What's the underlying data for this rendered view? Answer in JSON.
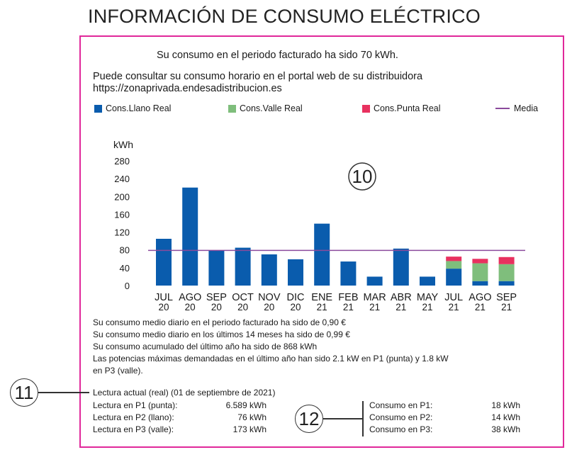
{
  "title": "INFORMACIÓN DE CONSUMO ELÉCTRICO",
  "period_text": "Su consumo en el periodo facturado ha sido 70 kWh.",
  "consulta_line1": "Puede consultar su consumo horario en el portal web de su distribuidora",
  "consulta_line2": "https://zonaprivada.endesadistribucion.es",
  "legend": [
    {
      "label": "Cons.Llano Real",
      "color": "#0a5cad"
    },
    {
      "label": "Cons.Valle Real",
      "color": "#7fbe7c"
    },
    {
      "label": "Cons.Punta Real",
      "color": "#e8315f"
    },
    {
      "label": "Media",
      "color": "#8b4a9c"
    }
  ],
  "chart_data": {
    "type": "bar",
    "ylabel": "kWh",
    "ylim": [
      0,
      280
    ],
    "yticks": [
      "280",
      "240",
      "200",
      "160",
      "120",
      "80",
      "40",
      "0"
    ],
    "mean": 79,
    "categories": [
      {
        "month": "JUL",
        "year": "20"
      },
      {
        "month": "AGO",
        "year": "20"
      },
      {
        "month": "SEP",
        "year": "20"
      },
      {
        "month": "OCT",
        "year": "20"
      },
      {
        "month": "NOV",
        "year": "20"
      },
      {
        "month": "DIC",
        "year": "20"
      },
      {
        "month": "ENE",
        "year": "21"
      },
      {
        "month": "FEB",
        "year": "21"
      },
      {
        "month": "MAR",
        "year": "21"
      },
      {
        "month": "ABR",
        "year": "21"
      },
      {
        "month": "MAY",
        "year": "21"
      },
      {
        "month": "JUL",
        "year": "21"
      },
      {
        "month": "AGO",
        "year": "21"
      },
      {
        "month": "SEP",
        "year": "21"
      }
    ],
    "series": [
      {
        "name": "Cons.Llano Real",
        "values": [
          105,
          220,
          79,
          85,
          70,
          59,
          139,
          54,
          20,
          83,
          20,
          38,
          10,
          10
        ]
      },
      {
        "name": "Cons.Valle Real",
        "values": [
          0,
          0,
          0,
          0,
          0,
          0,
          0,
          0,
          0,
          0,
          0,
          17,
          40,
          38
        ]
      },
      {
        "name": "Cons.Punta Real",
        "values": [
          0,
          0,
          0,
          0,
          0,
          0,
          0,
          0,
          0,
          0,
          0,
          10,
          10,
          16
        ]
      }
    ],
    "annotation": "10"
  },
  "stats": [
    "Su consumo medio diario en el periodo facturado ha sido de  0,90 €",
    "Su consumo medio diario en los últimos 14 meses ha sido de  0,99 €",
    "Su consumo acumulado del último año ha sido de  868 kWh",
    "Las potencias máximas demandadas en el último año han sido 2.1 kW en P1 (punta) y 1.8 kW",
    "en P3 (valle)."
  ],
  "lectura_head": "Lectura actual (real) (01 de septiembre de 2021)",
  "lecturas": [
    {
      "label": "Lectura en P1 (punta):",
      "value": "6.589 kWh"
    },
    {
      "label": "Lectura en P2 (llano):",
      "value": "76 kWh"
    },
    {
      "label": "Lectura en P3 (valle):",
      "value": "173 kWh"
    }
  ],
  "consumos": [
    {
      "label": "Consumo en P1:",
      "value": "18 kWh"
    },
    {
      "label": "Consumo en P2:",
      "value": "14 kWh"
    },
    {
      "label": "Consumo en P3:",
      "value": "38 kWh"
    }
  ],
  "callouts": {
    "c11": "11",
    "c12": "12"
  }
}
